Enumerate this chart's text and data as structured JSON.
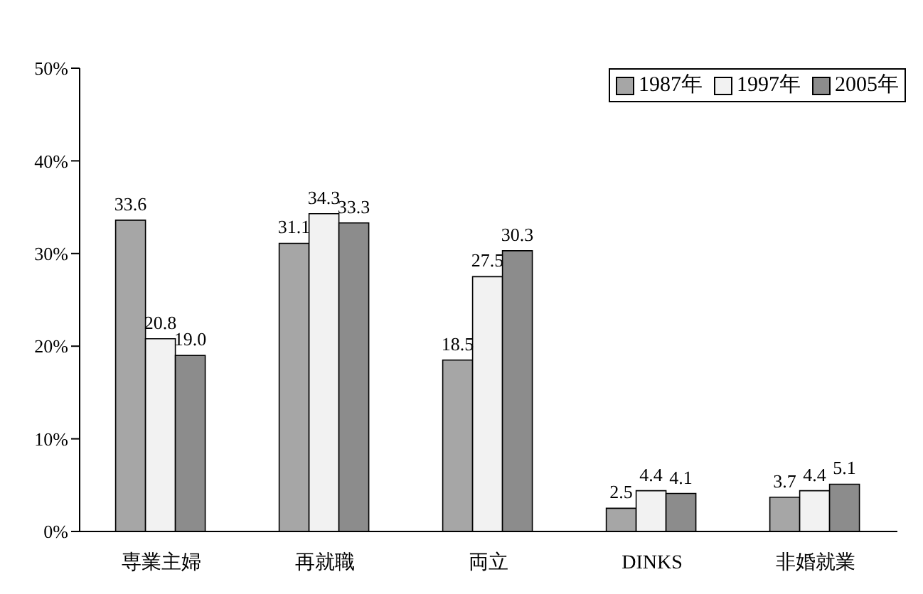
{
  "chart_data": {
    "type": "bar",
    "categories": [
      "専業主婦",
      "再就職",
      "両立",
      "DINKS",
      "非婚就業"
    ],
    "series": [
      {
        "name": "1987年",
        "color": "#a6a6a6",
        "values": [
          33.6,
          31.1,
          18.5,
          2.5,
          3.7
        ],
        "value_labels": [
          "33.6",
          "31.1",
          "18.5",
          "2.5",
          "3.7"
        ]
      },
      {
        "name": "1997年",
        "color": "#f2f2f2",
        "values": [
          20.8,
          34.3,
          27.5,
          4.4,
          4.4
        ],
        "value_labels": [
          "20.8",
          "34.3",
          "27.5",
          "4.4",
          "4.4"
        ]
      },
      {
        "name": "2005年",
        "color": "#8c8c8c",
        "values": [
          19.0,
          33.3,
          30.3,
          4.1,
          5.1
        ],
        "value_labels": [
          "19.0",
          "33.3",
          "30.3",
          "4.1",
          "5.1"
        ]
      }
    ],
    "ylim": [
      0,
      50
    ],
    "yticks": [
      {
        "value": 0,
        "label": "0%"
      },
      {
        "value": 10,
        "label": "10%"
      },
      {
        "value": 20,
        "label": "20%"
      },
      {
        "value": 30,
        "label": "30%"
      },
      {
        "value": 40,
        "label": "40%"
      },
      {
        "value": 50,
        "label": "50%"
      }
    ],
    "grid": false,
    "legend": "top right"
  }
}
